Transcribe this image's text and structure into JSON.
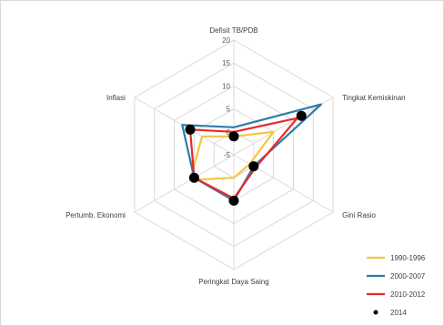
{
  "chart_data": {
    "type": "radar",
    "axes": [
      "Defisit TB/PDB",
      "Tingkat Kemiskinan",
      "Gini Rasio",
      "Peringkat Daya Saing",
      "Pertumb. Ekonomi",
      "Inflasi"
    ],
    "r_ticks": [
      -5,
      0,
      5,
      10,
      15,
      20
    ],
    "r_tick_labels": [
      "-5",
      "0",
      "5",
      "10",
      "15",
      "20"
    ],
    "rlim": [
      -5,
      20
    ],
    "grid": true,
    "legend_position": "bottom-right",
    "series": [
      {
        "name": "1990-1996",
        "color": "#f5c542",
        "values": [
          -1,
          5,
          -1,
          0,
          6,
          3
        ]
      },
      {
        "name": "2000-2007",
        "color": "#2e7ca8",
        "values": [
          1,
          17,
          0,
          5,
          5,
          8
        ]
      },
      {
        "name": "2010-2012",
        "color": "#e8282b",
        "values": [
          0,
          11,
          0.5,
          4.5,
          5,
          6
        ]
      },
      {
        "name": "2014",
        "color": "#000000",
        "values": [
          -1,
          12,
          0,
          5,
          5,
          6
        ],
        "marker_only": true
      }
    ]
  }
}
